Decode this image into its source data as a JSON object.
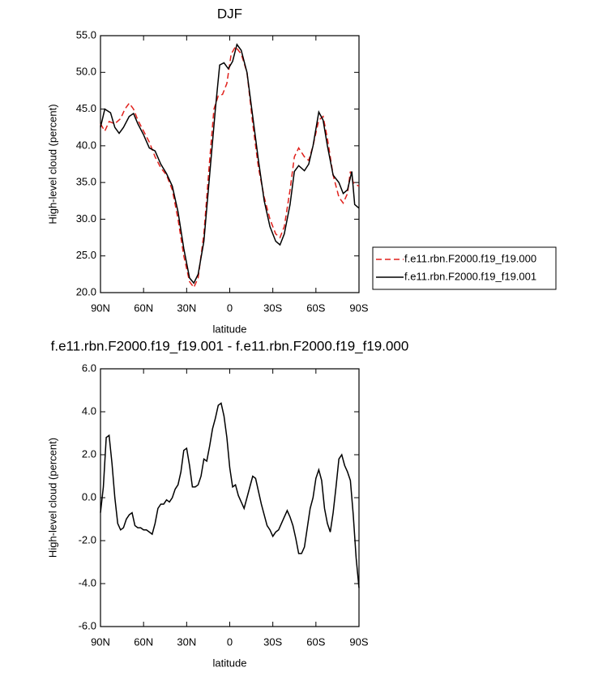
{
  "chart_data": [
    {
      "type": "line",
      "title": "DJF",
      "xlabel": "latitude",
      "ylabel": "High-level cloud (percent)",
      "xlim": [
        90,
        -90
      ],
      "xticks": [
        {
          "value": 90,
          "label": "90N"
        },
        {
          "value": 60,
          "label": "60N"
        },
        {
          "value": 30,
          "label": "30N"
        },
        0,
        {
          "value": -30,
          "label": "30S"
        },
        {
          "value": -60,
          "label": "60S"
        },
        {
          "value": -90,
          "label": "90S"
        }
      ],
      "ylim": [
        20,
        55
      ],
      "yticks": [
        {
          "value": 20,
          "label": "20.0"
        },
        {
          "value": 25,
          "label": "25.0"
        },
        {
          "value": 30,
          "label": "30.0"
        },
        {
          "value": 35,
          "label": "35.0"
        },
        {
          "value": 40,
          "label": "40.0"
        },
        {
          "value": 45,
          "label": "45.0"
        },
        {
          "value": 50,
          "label": "50.0"
        },
        {
          "value": 55,
          "label": "55.0"
        }
      ],
      "legend": "right",
      "series": [
        {
          "name": "f.e11.rbn.F2000.f19_f19.000",
          "color": "#e0201b",
          "style": "dashed",
          "x": [
            90,
            87,
            84,
            80,
            76,
            73,
            70,
            67,
            64,
            60,
            56,
            52,
            48,
            44,
            40,
            36,
            32,
            28,
            25,
            22,
            18,
            14,
            11,
            8,
            5,
            2,
            -1,
            -4,
            -8,
            -12,
            -16,
            -20,
            -24,
            -28,
            -32,
            -35,
            -38,
            -42,
            -45,
            -48,
            -52,
            -55,
            -58,
            -62,
            -65,
            -68,
            -72,
            -76,
            -79,
            -82,
            -84,
            -86,
            -88,
            -90
          ],
          "values": [
            43,
            42,
            43.3,
            43,
            43.7,
            45,
            45.8,
            45,
            43.5,
            42,
            40.5,
            38.5,
            37,
            36,
            34,
            30,
            25,
            21.5,
            20.7,
            22,
            28,
            38,
            45,
            46.8,
            47,
            48.5,
            52.5,
            53.5,
            52.5,
            50,
            43,
            37,
            33,
            30,
            28,
            27.5,
            29,
            34,
            38.5,
            39.7,
            38.5,
            38,
            40,
            43.5,
            44,
            41,
            36,
            33,
            32.2,
            33.5,
            36.5,
            35,
            34.7,
            34.5
          ]
        },
        {
          "name": "f.e11.rbn.F2000.f19_f19.001",
          "color": "#000000",
          "style": "solid",
          "x": [
            90,
            87,
            83,
            80,
            77,
            74,
            70,
            67,
            64,
            60,
            56,
            52,
            48,
            44,
            40,
            36,
            32,
            28,
            25,
            22,
            18,
            14,
            10,
            7,
            4,
            1,
            -2,
            -5,
            -8,
            -12,
            -16,
            -20,
            -24,
            -28,
            -32,
            -35,
            -38,
            -42,
            -45,
            -48,
            -52,
            -55,
            -58,
            -62,
            -65,
            -68,
            -72,
            -76,
            -79,
            -82,
            -85,
            -87,
            -90
          ],
          "values": [
            42.5,
            45,
            44.5,
            42.5,
            41.7,
            42.5,
            44,
            44.4,
            43,
            41.5,
            39.7,
            39.3,
            37.5,
            36.2,
            34.5,
            31,
            26,
            22,
            21.3,
            22.5,
            27,
            36,
            45,
            51,
            51.3,
            50.5,
            51.5,
            53.8,
            53,
            50,
            44,
            38,
            32.5,
            29,
            27,
            26.5,
            28,
            32,
            36.5,
            37.3,
            36.6,
            37.5,
            40,
            44.6,
            43.5,
            40,
            36,
            35,
            33.5,
            34,
            36.5,
            32,
            31.5
          ]
        }
      ]
    },
    {
      "type": "line",
      "title": "f.e11.rbn.F2000.f19_f19.001 - f.e11.rbn.F2000.f19_f19.000",
      "xlabel": "latitude",
      "ylabel": "High-level cloud (percent)",
      "xlim": [
        90,
        -90
      ],
      "xticks": [
        {
          "value": 90,
          "label": "90N"
        },
        {
          "value": 60,
          "label": "60N"
        },
        {
          "value": 30,
          "label": "30N"
        },
        0,
        {
          "value": -30,
          "label": "30S"
        },
        {
          "value": -60,
          "label": "60S"
        },
        {
          "value": -90,
          "label": "90S"
        }
      ],
      "ylim": [
        -6,
        6
      ],
      "yticks": [
        {
          "value": -6,
          "label": "-6.0"
        },
        {
          "value": -4,
          "label": "-4.0"
        },
        {
          "value": -2,
          "label": "-2.0"
        },
        {
          "value": 0,
          "label": "0.0"
        },
        {
          "value": 2,
          "label": "2.0"
        },
        {
          "value": 4,
          "label": "4.0"
        },
        {
          "value": 6,
          "label": "6.0"
        }
      ],
      "series": [
        {
          "color": "#000000",
          "style": "solid",
          "x": [
            90,
            88,
            86,
            84,
            82,
            80,
            78,
            76,
            74,
            72,
            70,
            68,
            66,
            64,
            62,
            60,
            58,
            56,
            54,
            52,
            50,
            48,
            46,
            44,
            42,
            40,
            38,
            36,
            34,
            32,
            30,
            28,
            26,
            24,
            22,
            20,
            18,
            16,
            14,
            12,
            10,
            8,
            6,
            4,
            2,
            0,
            -2,
            -4,
            -6,
            -8,
            -10,
            -12,
            -14,
            -16,
            -18,
            -20,
            -22,
            -24,
            -26,
            -28,
            -30,
            -32,
            -34,
            -36,
            -38,
            -40,
            -42,
            -44,
            -46,
            -48,
            -50,
            -52,
            -54,
            -56,
            -58,
            -60,
            -62,
            -64,
            -66,
            -68,
            -70,
            -72,
            -74,
            -76,
            -78,
            -80,
            -82,
            -84,
            -86,
            -88,
            -90
          ],
          "values": [
            -0.7,
            0.5,
            2.8,
            2.9,
            1.6,
            0,
            -1.2,
            -1.5,
            -1.4,
            -1,
            -0.8,
            -0.7,
            -1.3,
            -1.4,
            -1.4,
            -1.5,
            -1.5,
            -1.6,
            -1.7,
            -1.2,
            -0.5,
            -0.3,
            -0.3,
            -0.1,
            -0.2,
            0,
            0.4,
            0.6,
            1.2,
            2.2,
            2.3,
            1.5,
            0.5,
            0.5,
            0.6,
            1,
            1.8,
            1.7,
            2.4,
            3.2,
            3.7,
            4.3,
            4.4,
            3.8,
            2.8,
            1.4,
            0.5,
            0.6,
            0.1,
            -0.2,
            -0.5,
            0,
            0.5,
            1,
            0.9,
            0.3,
            -0.3,
            -0.8,
            -1.3,
            -1.5,
            -1.8,
            -1.6,
            -1.5,
            -1.2,
            -0.9,
            -0.6,
            -0.9,
            -1.3,
            -1.9,
            -2.6,
            -2.6,
            -2.3,
            -1.4,
            -0.5,
            0,
            0.9,
            1.3,
            0.8,
            -0.5,
            -1.2,
            -1.6,
            -0.7,
            0.5,
            1.8,
            2,
            1.5,
            1.2,
            0.8,
            -0.8,
            -2.8,
            -4.2
          ]
        }
      ]
    }
  ]
}
